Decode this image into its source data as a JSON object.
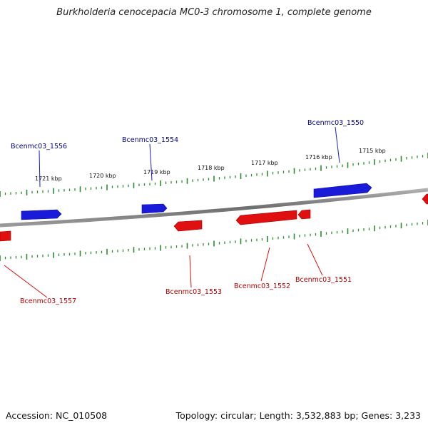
{
  "title": "Burkholderia cenocepacia MC0-3 chromosome 1, complete genome",
  "footer": {
    "accession": "Accession: NC_010508",
    "summary": "Topology: circular; Length: 3,532,883 bp; Genes: 3,233"
  },
  "colors": {
    "forward_strand": "#1a1ad9",
    "reverse_strand": "#e01010",
    "forward_label": "#00008b",
    "reverse_label": "#b00000",
    "tick": "#2e8b2e",
    "backbone": "#7a7a7a"
  },
  "scale_labels": [
    "1721 kbp",
    "1720 kbp",
    "1719 kbp",
    "1718 kbp",
    "1717 kbp",
    "1716 kbp",
    "1715 kbp"
  ],
  "genes": [
    {
      "label": "Bcenmc03_1556",
      "strand": "forward"
    },
    {
      "label": "Bcenmc03_1554",
      "strand": "forward"
    },
    {
      "label": "Bcenmc03_1550",
      "strand": "forward"
    },
    {
      "label": "Bcenmc03_1557",
      "strand": "reverse"
    },
    {
      "label": "Bcenmc03_1553",
      "strand": "reverse"
    },
    {
      "label": "Bcenmc03_1552",
      "strand": "reverse"
    },
    {
      "label": "Bcenmc03_1551",
      "strand": "reverse"
    }
  ]
}
